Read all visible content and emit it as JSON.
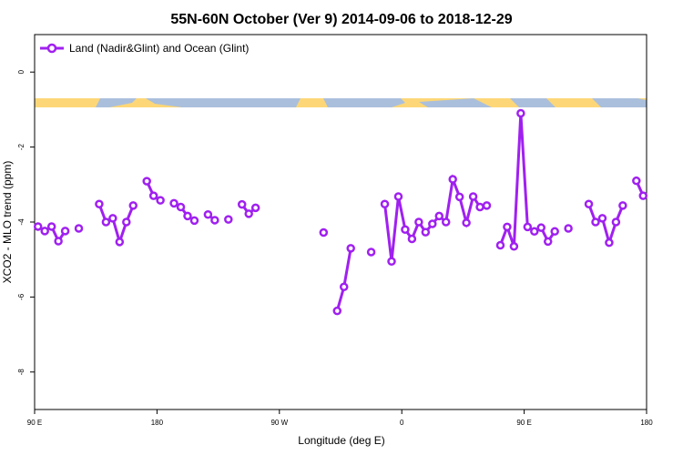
{
  "chart_data": {
    "type": "line",
    "title": "55N-60N October (Ver 9)   2014-09-06 to 2018-12-29",
    "x_label": "Longitude (deg E)",
    "y_label": "XCO2 - MLO trend (ppm)",
    "x": [
      92.5,
      97.5,
      102.5,
      107.5,
      112.5,
      117.5,
      122.5,
      127.5,
      137.5,
      142.5,
      147.5,
      152.5,
      157.5,
      162.5,
      167.5,
      172.5,
      177.5,
      182.5,
      187.5,
      192.5,
      197.5,
      202.5,
      207.5,
      212.5,
      217.5,
      222.5,
      227.5,
      232.5,
      237.5,
      242.5,
      247.5,
      252.5,
      257.5,
      302.5,
      307.5,
      312.5,
      317.5,
      322.5,
      327.5,
      337.5,
      342.5,
      347.5,
      352.5,
      357.5,
      362.5,
      367.5,
      372.5,
      377.5,
      382.5,
      387.5,
      392.5,
      397.5,
      402.5,
      407.5,
      412.5,
      417.5,
      422.5,
      427.5,
      432.5,
      437.5,
      442.5,
      447.5,
      452.5,
      457.5,
      462.5,
      467.5,
      472.5,
      477.5,
      482.5,
      487.5,
      497.5,
      502.5,
      507.5,
      512.5,
      517.5,
      522.5,
      527.5,
      532.5,
      537.5
    ],
    "series": [
      {
        "name": "Land (Nadir&Glint) and Ocean (Glint)",
        "color": "#a020f0",
        "values": [
          -4.12,
          -4.24,
          -4.12,
          -4.51,
          -4.24,
          null,
          -4.17,
          null,
          -3.52,
          -4.0,
          -3.9,
          -4.53,
          -4.0,
          -3.56,
          null,
          -2.91,
          -3.3,
          -3.42,
          null,
          -3.5,
          -3.6,
          -3.84,
          -3.96,
          null,
          -3.8,
          -3.95,
          null,
          -3.93,
          null,
          -3.53,
          -3.78,
          -3.62,
          null,
          -4.28,
          null,
          -6.37,
          -5.73,
          -4.7,
          null,
          -4.8,
          null,
          -3.52,
          -5.05,
          -3.32,
          -4.2,
          -4.45,
          -4.0,
          -4.27,
          -4.05,
          -3.84,
          -4.0,
          -2.86,
          -3.33,
          -4.02,
          -3.32,
          -3.6,
          -3.56,
          null,
          -4.62,
          -4.13,
          -4.65,
          -1.1,
          -4.13,
          -4.25,
          -4.15,
          -4.52,
          -4.25,
          null,
          -4.17,
          null,
          -3.52,
          -4.0,
          -3.9,
          -4.55,
          -4.0,
          -3.56,
          null,
          -2.9,
          -3.3
        ]
      }
    ],
    "xlim": [
      90,
      540
    ],
    "xticks": [
      {
        "value": 90,
        "label": "90 E"
      },
      180,
      {
        "value": 270,
        "label": "90 W"
      },
      {
        "value": 360,
        "label": "0"
      },
      {
        "value": 450,
        "label": "90 E"
      },
      {
        "value": 540,
        "label": "180"
      }
    ],
    "ylim": [
      -9,
      1
    ],
    "yticks": [
      0,
      -2,
      -4,
      -6,
      -8
    ],
    "legend": "top-left"
  }
}
